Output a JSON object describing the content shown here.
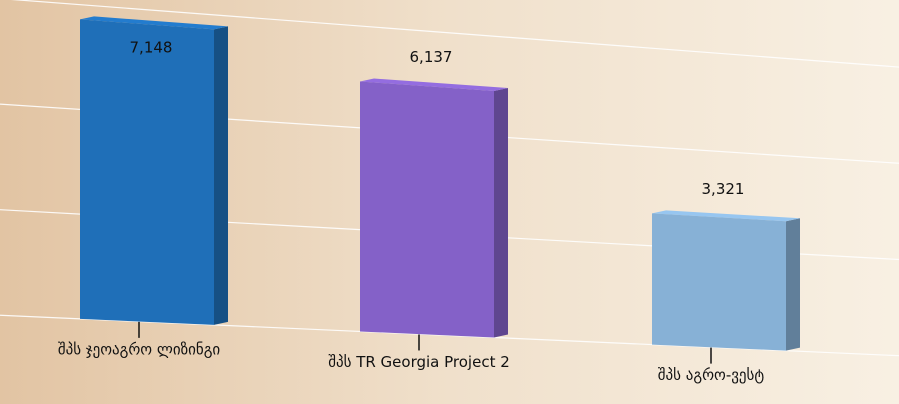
{
  "chart_data": {
    "type": "bar",
    "categories": [
      "შპს ჯეოაგრო ლიზინგი",
      "შპს TR Georgia Project 2",
      "შპს აგრო-ვესტ"
    ],
    "values": [
      7148,
      6137,
      3321
    ],
    "value_labels": [
      "7,148",
      "6,137",
      "3,321"
    ],
    "colors": [
      "#1f6fb8",
      "#8461c8",
      "#87b1d6"
    ],
    "ylim": [
      0,
      7500
    ],
    "yticks": [
      0,
      2500,
      5000,
      7500
    ],
    "grid": true
  }
}
